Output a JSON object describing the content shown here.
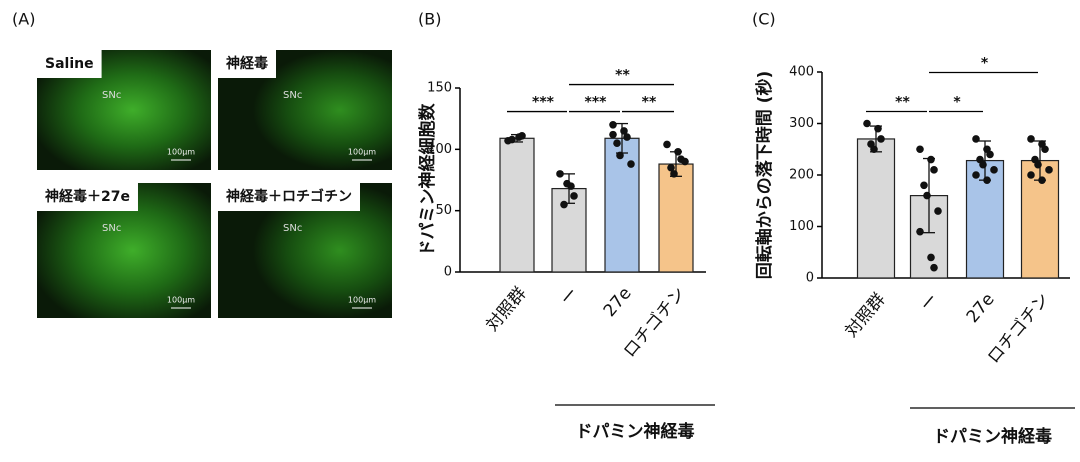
{
  "panel_labels": [
    "(A)",
    "(B)",
    "(C)"
  ],
  "micrographs": [
    {
      "label": "Saline",
      "region": "SNc",
      "scale": "100µm"
    },
    {
      "label": "神経毒",
      "region": "SNc",
      "scale": "100µm"
    },
    {
      "label": "神経毒＋27e",
      "region": "SNc",
      "scale": "100µm"
    },
    {
      "label": "神経毒＋ロチゴチン",
      "region": "SNc",
      "scale": "100µm"
    }
  ],
  "chart_data": [
    {
      "type": "bar",
      "ylabel": "ドパミン神経細胞数",
      "categories": [
        "対照群",
        "ー",
        "27e",
        "ロチゴチン"
      ],
      "values": [
        109,
        68,
        109,
        88
      ],
      "errors": [
        3,
        12,
        12,
        10
      ],
      "points": [
        [
          107,
          110,
          111,
          108
        ],
        [
          80,
          70,
          62,
          55,
          72
        ],
        [
          120,
          115,
          110,
          105,
          95,
          88,
          112
        ],
        [
          104,
          98,
          92,
          85,
          80,
          90
        ]
      ],
      "colors": [
        "#d9d9d9",
        "#d9d9d9",
        "#a9c4e8",
        "#f5c48a"
      ],
      "ylim": [
        0,
        150
      ],
      "yticks": [
        0,
        50,
        100,
        150
      ],
      "group_label": "ドパミン神経毒",
      "comparisons": [
        {
          "between": [
            0,
            1
          ],
          "label": "***"
        },
        {
          "between": [
            1,
            2
          ],
          "label": "***"
        },
        {
          "between": [
            2,
            3
          ],
          "label": "**"
        },
        {
          "between": [
            1,
            3
          ],
          "label": "**"
        }
      ]
    },
    {
      "type": "bar",
      "ylabel": "回転軸からの落下時間 (秒)",
      "categories": [
        "対照群",
        "ー",
        "27e",
        "ロチゴチン"
      ],
      "values": [
        270,
        160,
        228,
        228
      ],
      "errors": [
        25,
        72,
        38,
        38
      ],
      "points": [
        [
          300,
          290,
          270,
          260,
          250
        ],
        [
          250,
          230,
          210,
          180,
          160,
          130,
          90,
          40,
          20
        ],
        [
          270,
          250,
          240,
          230,
          220,
          210,
          200,
          190
        ],
        [
          270,
          260,
          250,
          230,
          220,
          210,
          200,
          190
        ]
      ],
      "colors": [
        "#d9d9d9",
        "#d9d9d9",
        "#a9c4e8",
        "#f5c48a"
      ],
      "ylim": [
        0,
        400
      ],
      "yticks": [
        0,
        100,
        200,
        300,
        400
      ],
      "group_label": "ドパミン神経毒",
      "comparisons": [
        {
          "between": [
            0,
            1
          ],
          "label": "**"
        },
        {
          "between": [
            1,
            2
          ],
          "label": "*"
        },
        {
          "between": [
            1,
            3
          ],
          "label": "*"
        }
      ]
    }
  ]
}
